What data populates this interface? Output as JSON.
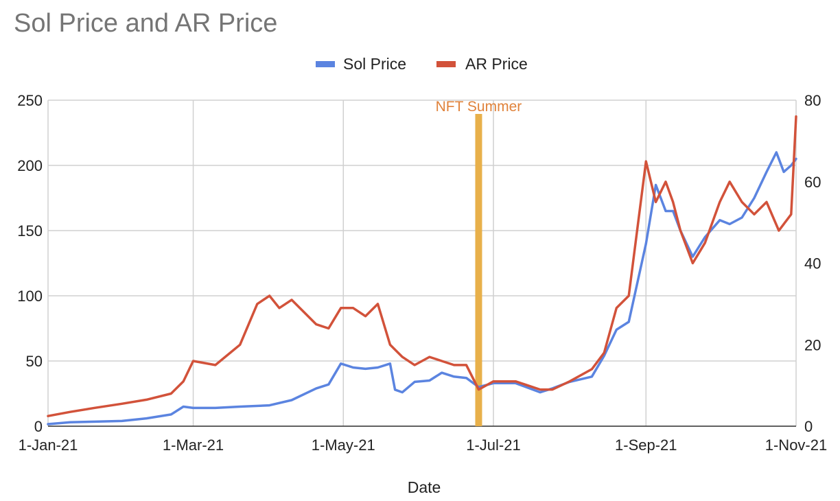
{
  "chart_data": {
    "type": "line",
    "title": "Sol Price and AR Price",
    "xlabel": "Date",
    "x_ticks": [
      "1-Jan-21",
      "1-Mar-21",
      "1-May-21",
      "1-Jul-21",
      "1-Sep-21",
      "1-Nov-21"
    ],
    "x_range": [
      "2021-01-01",
      "2021-11-01"
    ],
    "y_left": {
      "range": [
        0,
        250
      ],
      "ticks": [
        "0",
        "50",
        "100",
        "150",
        "200",
        "250"
      ]
    },
    "y_right": {
      "range": [
        0,
        80
      ],
      "ticks": [
        "0",
        "20",
        "40",
        "60",
        "80"
      ]
    },
    "grid": true,
    "legend_position": "top",
    "annotation": {
      "label": "NFT Summer",
      "date": "2021-06-25",
      "color": "#E8B04A",
      "text_color": "#E0823A"
    },
    "series": [
      {
        "name": "Sol Price",
        "axis": "left",
        "color": "#5B84E0",
        "points": [
          [
            "2021-01-01",
            1.6
          ],
          [
            "2021-01-10",
            3
          ],
          [
            "2021-01-20",
            3.5
          ],
          [
            "2021-01-31",
            4
          ],
          [
            "2021-02-10",
            6
          ],
          [
            "2021-02-20",
            9
          ],
          [
            "2021-02-25",
            15
          ],
          [
            "2021-03-01",
            14
          ],
          [
            "2021-03-10",
            14
          ],
          [
            "2021-03-20",
            15
          ],
          [
            "2021-04-01",
            16
          ],
          [
            "2021-04-10",
            20
          ],
          [
            "2021-04-20",
            29
          ],
          [
            "2021-04-25",
            32
          ],
          [
            "2021-04-30",
            48
          ],
          [
            "2021-05-05",
            45
          ],
          [
            "2021-05-10",
            44
          ],
          [
            "2021-05-15",
            45
          ],
          [
            "2021-05-20",
            48
          ],
          [
            "2021-05-22",
            28
          ],
          [
            "2021-05-25",
            26
          ],
          [
            "2021-05-30",
            34
          ],
          [
            "2021-06-05",
            35
          ],
          [
            "2021-06-10",
            41
          ],
          [
            "2021-06-15",
            38
          ],
          [
            "2021-06-20",
            37
          ],
          [
            "2021-06-25",
            30
          ],
          [
            "2021-07-01",
            33
          ],
          [
            "2021-07-10",
            33
          ],
          [
            "2021-07-20",
            26
          ],
          [
            "2021-07-25",
            29
          ],
          [
            "2021-08-01",
            34
          ],
          [
            "2021-08-10",
            38
          ],
          [
            "2021-08-15",
            54
          ],
          [
            "2021-08-20",
            74
          ],
          [
            "2021-08-25",
            80
          ],
          [
            "2021-09-01",
            140
          ],
          [
            "2021-09-05",
            185
          ],
          [
            "2021-09-09",
            165
          ],
          [
            "2021-09-12",
            165
          ],
          [
            "2021-09-15",
            150
          ],
          [
            "2021-09-20",
            130
          ],
          [
            "2021-09-25",
            145
          ],
          [
            "2021-10-01",
            158
          ],
          [
            "2021-10-05",
            155
          ],
          [
            "2021-10-10",
            160
          ],
          [
            "2021-10-15",
            175
          ],
          [
            "2021-10-20",
            195
          ],
          [
            "2021-10-24",
            210
          ],
          [
            "2021-10-27",
            195
          ],
          [
            "2021-10-30",
            200
          ],
          [
            "2021-11-01",
            205
          ]
        ]
      },
      {
        "name": "AR Price",
        "axis": "right",
        "color": "#D2523A",
        "points": [
          [
            "2021-01-01",
            2.5
          ],
          [
            "2021-01-10",
            3.5
          ],
          [
            "2021-01-20",
            4.5
          ],
          [
            "2021-01-31",
            5.5
          ],
          [
            "2021-02-10",
            6.5
          ],
          [
            "2021-02-20",
            8
          ],
          [
            "2021-02-25",
            11
          ],
          [
            "2021-03-01",
            16
          ],
          [
            "2021-03-10",
            15
          ],
          [
            "2021-03-20",
            20
          ],
          [
            "2021-03-27",
            30
          ],
          [
            "2021-04-01",
            32
          ],
          [
            "2021-04-05",
            29
          ],
          [
            "2021-04-10",
            31
          ],
          [
            "2021-04-20",
            25
          ],
          [
            "2021-04-25",
            24
          ],
          [
            "2021-04-30",
            29
          ],
          [
            "2021-05-05",
            29
          ],
          [
            "2021-05-10",
            27
          ],
          [
            "2021-05-15",
            30
          ],
          [
            "2021-05-20",
            20
          ],
          [
            "2021-05-25",
            17
          ],
          [
            "2021-05-30",
            15
          ],
          [
            "2021-06-05",
            17
          ],
          [
            "2021-06-10",
            16
          ],
          [
            "2021-06-15",
            15
          ],
          [
            "2021-06-20",
            15
          ],
          [
            "2021-06-25",
            9
          ],
          [
            "2021-07-01",
            11
          ],
          [
            "2021-07-10",
            11
          ],
          [
            "2021-07-20",
            9
          ],
          [
            "2021-07-25",
            9
          ],
          [
            "2021-08-01",
            11
          ],
          [
            "2021-08-10",
            14
          ],
          [
            "2021-08-15",
            18
          ],
          [
            "2021-08-20",
            29
          ],
          [
            "2021-08-25",
            32
          ],
          [
            "2021-09-01",
            65
          ],
          [
            "2021-09-05",
            55
          ],
          [
            "2021-09-09",
            60
          ],
          [
            "2021-09-12",
            55
          ],
          [
            "2021-09-15",
            48
          ],
          [
            "2021-09-20",
            40
          ],
          [
            "2021-09-25",
            45
          ],
          [
            "2021-10-01",
            55
          ],
          [
            "2021-10-05",
            60
          ],
          [
            "2021-10-10",
            55
          ],
          [
            "2021-10-15",
            52
          ],
          [
            "2021-10-20",
            55
          ],
          [
            "2021-10-25",
            48
          ],
          [
            "2021-10-30",
            52
          ],
          [
            "2021-11-01",
            76
          ]
        ]
      }
    ]
  }
}
